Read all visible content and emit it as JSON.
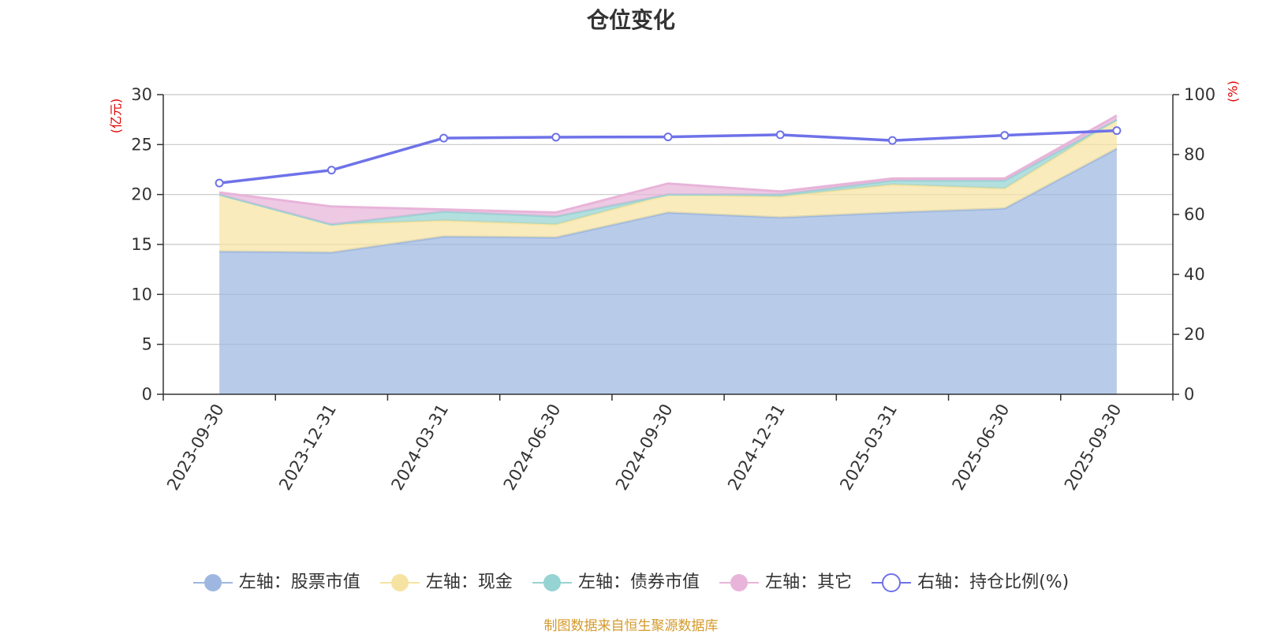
{
  "chart_data": {
    "type": "area",
    "title": "仓位变化",
    "categories": [
      "2023-09-30",
      "2023-12-31",
      "2024-03-31",
      "2024-06-30",
      "2024-09-30",
      "2024-12-31",
      "2025-03-31",
      "2025-06-30",
      "2025-09-30"
    ],
    "left_axis": {
      "unit": "(亿元)",
      "ylim": [
        0,
        30
      ],
      "ticks": [
        "0",
        "5",
        "10",
        "15",
        "20",
        "25",
        "30"
      ],
      "tick_values": [
        0,
        5,
        10,
        15,
        20,
        25,
        30
      ]
    },
    "right_axis": {
      "unit": "(%)",
      "ylim": [
        0,
        100
      ],
      "ticks": [
        "0",
        "20",
        "40",
        "60",
        "80",
        "100"
      ],
      "tick_values": [
        0,
        20,
        40,
        60,
        80,
        100
      ]
    },
    "series": [
      {
        "name": "左轴：股票市值",
        "axis": "left",
        "stack": true,
        "color": "#9db7e0",
        "values": [
          14.3,
          14.2,
          15.8,
          15.7,
          18.2,
          17.7,
          18.2,
          18.6,
          24.6
        ]
      },
      {
        "name": "左轴：现金",
        "axis": "left",
        "stack": true,
        "color": "#f6e3a1",
        "values": [
          5.7,
          2.8,
          1.6,
          1.3,
          1.8,
          2.1,
          2.8,
          2.0,
          2.9
        ]
      },
      {
        "name": "左轴：债券市值",
        "axis": "left",
        "stack": true,
        "color": "#96d3d3",
        "values": [
          0,
          0,
          0.9,
          0.8,
          0,
          0.2,
          0.4,
          0.8,
          0
        ]
      },
      {
        "name": "左轴：其它",
        "axis": "left",
        "stack": true,
        "color": "#e8b4d9",
        "values": [
          0.2,
          1.8,
          0.2,
          0.4,
          1.1,
          0.3,
          0.2,
          0.2,
          0.4
        ]
      },
      {
        "name": "右轴：持仓比例(%)",
        "axis": "right",
        "type": "line",
        "color": "#6e72e8",
        "values": [
          70.5,
          74.8,
          85.5,
          85.8,
          85.9,
          86.6,
          84.7,
          86.4,
          88.0
        ]
      }
    ],
    "legend_position": "bottom",
    "grid": true
  },
  "source_note": "制图数据来自恒生聚源数据库"
}
